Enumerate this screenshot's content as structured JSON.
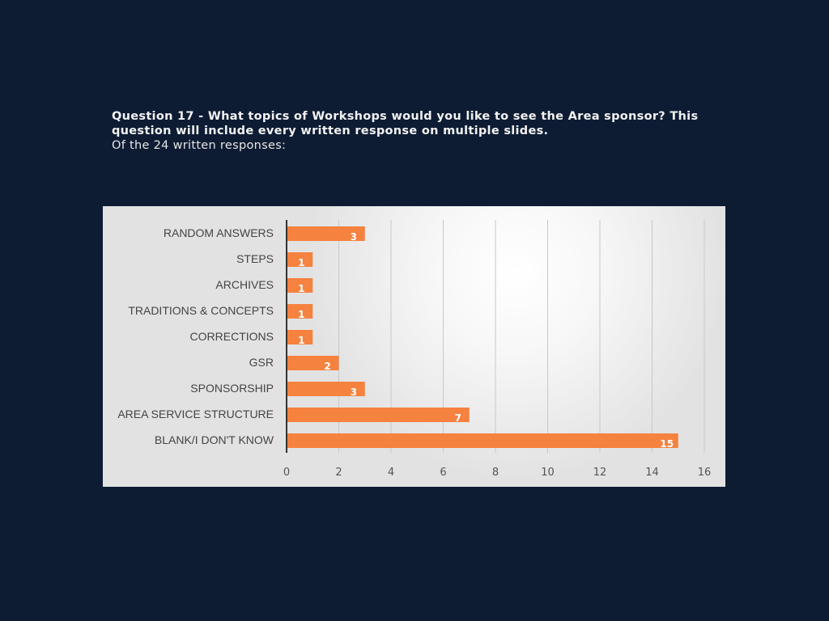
{
  "slide": {
    "title": "Question 17 - What topics of Workshops would you like to see the Area sponsor? This question will include every written response on multiple slides.",
    "subtitle": "Of the 24 written responses:"
  },
  "chart_data": {
    "type": "bar",
    "orientation": "horizontal",
    "categories": [
      "RANDOM ANSWERS",
      "STEPS",
      "ARCHIVES",
      "TRADITIONS & CONCEPTS",
      "CORRECTIONS",
      "GSR",
      "SPONSORSHIP",
      "AREA SERVICE STRUCTURE",
      "BLANK/I DON'T KNOW"
    ],
    "values": [
      3,
      1,
      1,
      1,
      1,
      2,
      3,
      7,
      15
    ],
    "data_labels": [
      "3",
      "1",
      "1",
      "1",
      "1",
      "2",
      "3",
      "7",
      "15"
    ],
    "xlim": [
      0,
      16
    ],
    "xticks": [
      "0",
      "2",
      "4",
      "6",
      "8",
      "10",
      "12",
      "14",
      "16"
    ],
    "grid": true,
    "bar_color": "#f5823f",
    "background_color": "#0e1c33"
  }
}
